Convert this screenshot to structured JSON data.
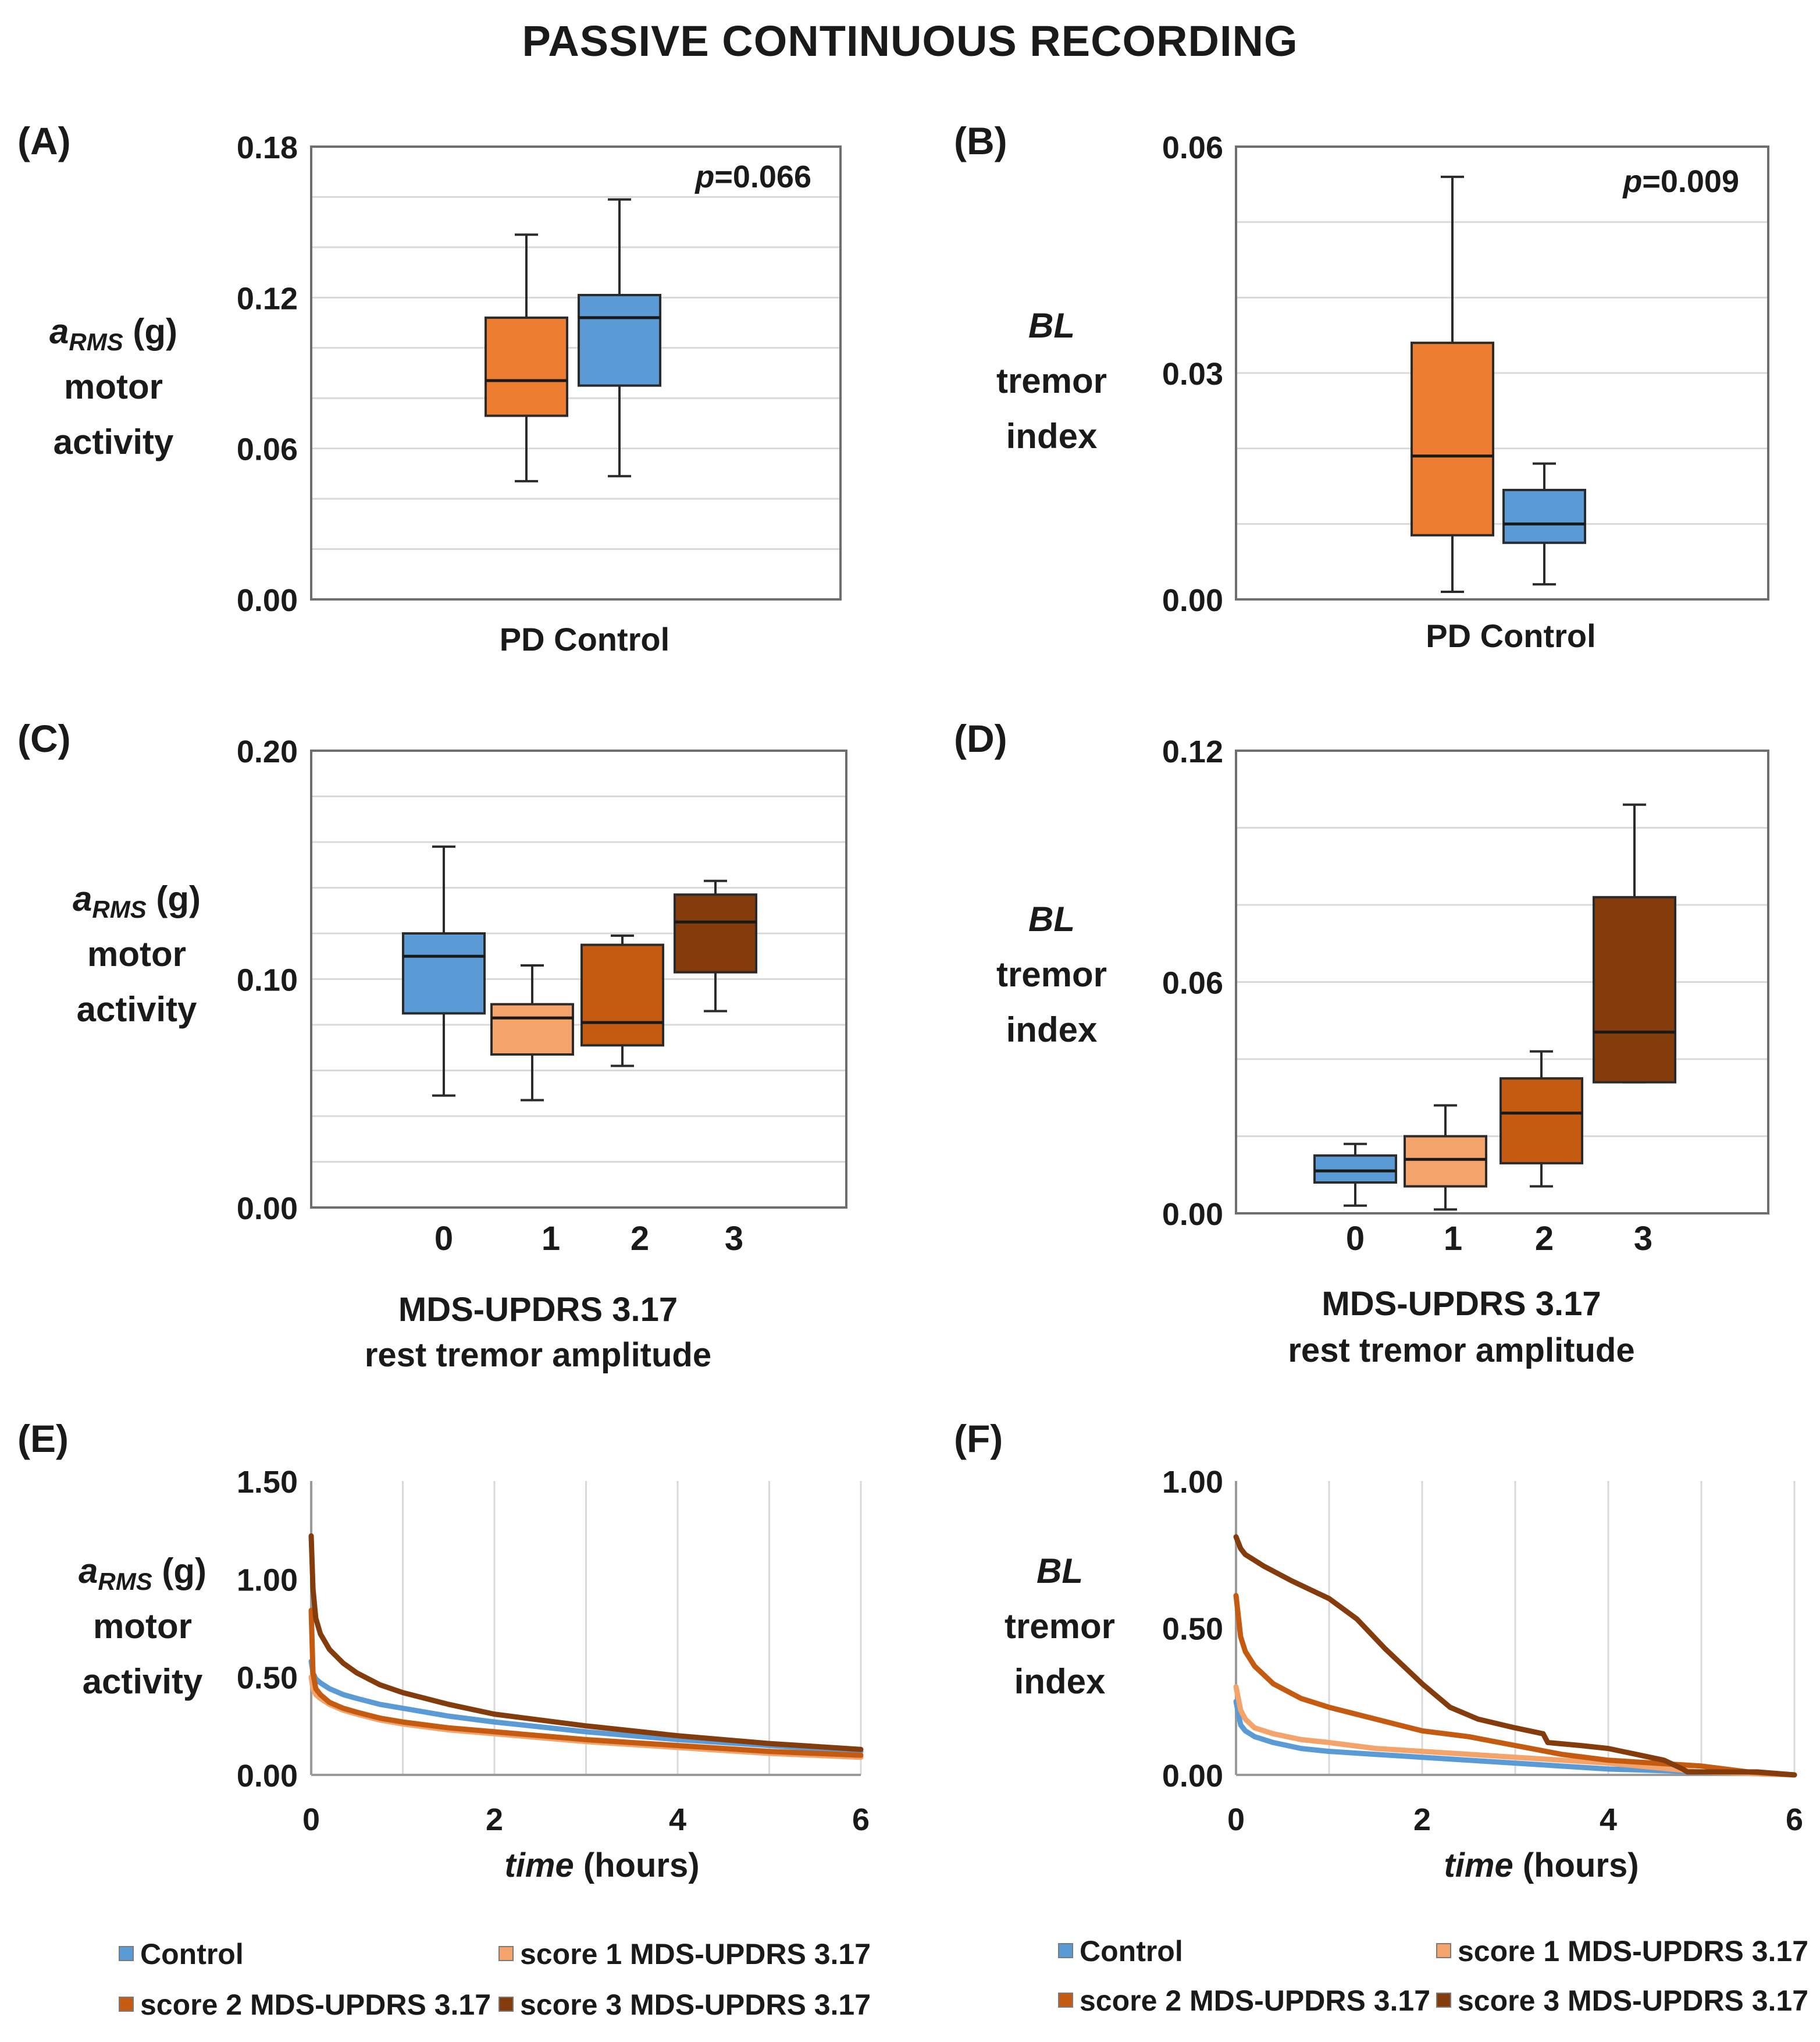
{
  "figure": {
    "title": "PASSIVE CONTINUOUS RECORDING"
  },
  "colors": {
    "control": "#5b9bd5",
    "score1": "#f4a36a",
    "pd": "#ed7d31",
    "score2": "#c55a11",
    "score3": "#843c0c",
    "grid": "#d9d9d9",
    "axis": "#7f7f7f"
  },
  "chart_data": [
    {
      "id": "A",
      "type": "box",
      "panel_label": "(A)",
      "ylabel_lines": [
        "a_RMS (g)",
        "motor",
        "activity"
      ],
      "xlabel_lines": [
        "PD  Control"
      ],
      "annotation": {
        "p": "p",
        "value": "=0.066"
      },
      "ylim": [
        0,
        0.18
      ],
      "yticks": [
        0,
        0.06,
        0.12,
        0.18
      ],
      "ytick_labels": [
        "0.00",
        "0.06",
        "0.12",
        "0.18"
      ],
      "grid_step": 0.02,
      "categories": [
        "PD",
        "Control"
      ],
      "series": [
        {
          "name": "PD",
          "color_key": "pd",
          "whisker_low": 0.047,
          "q1": 0.073,
          "median": 0.087,
          "q3": 0.112,
          "whisker_high": 0.145
        },
        {
          "name": "Control",
          "color_key": "control",
          "whisker_low": 0.049,
          "q1": 0.085,
          "median": 0.112,
          "q3": 0.121,
          "whisker_high": 0.159
        }
      ]
    },
    {
      "id": "B",
      "type": "box",
      "panel_label": "(B)",
      "ylabel_lines": [
        "BL",
        "tremor",
        "index"
      ],
      "xlabel_lines": [
        "PD  Control"
      ],
      "annotation": {
        "p": "p",
        "value": "=0.009"
      },
      "ylim": [
        0,
        0.06
      ],
      "yticks": [
        0,
        0.03,
        0.06
      ],
      "ytick_labels": [
        "0.00",
        "0.03",
        "0.06"
      ],
      "grid_step": 0.01,
      "categories": [
        "PD",
        "Control"
      ],
      "series": [
        {
          "name": "PD",
          "color_key": "pd",
          "whisker_low": 0.001,
          "q1": 0.0085,
          "median": 0.019,
          "q3": 0.034,
          "whisker_high": 0.056
        },
        {
          "name": "Control",
          "color_key": "control",
          "whisker_low": 0.002,
          "q1": 0.0075,
          "median": 0.01,
          "q3": 0.0145,
          "whisker_high": 0.018
        }
      ]
    },
    {
      "id": "C",
      "type": "box",
      "panel_label": "(C)",
      "ylabel_lines": [
        "a_RMS (g)",
        "motor",
        "activity"
      ],
      "xlabel_lines": [
        "MDS-UPDRS 3.17",
        "rest tremor amplitude"
      ],
      "ylim": [
        0,
        0.2
      ],
      "yticks": [
        0,
        0.1,
        0.2
      ],
      "ytick_labels": [
        "0.00",
        "0.10",
        "0.20"
      ],
      "grid_step": 0.02,
      "categories": [
        "0",
        "1",
        "2",
        "3"
      ],
      "series": [
        {
          "name": "0",
          "color_key": "control",
          "whisker_low": 0.049,
          "q1": 0.085,
          "median": 0.11,
          "q3": 0.12,
          "whisker_high": 0.158
        },
        {
          "name": "1",
          "color_key": "score1",
          "whisker_low": 0.047,
          "q1": 0.067,
          "median": 0.083,
          "q3": 0.089,
          "whisker_high": 0.106
        },
        {
          "name": "2",
          "color_key": "score2",
          "whisker_low": 0.062,
          "q1": 0.071,
          "median": 0.081,
          "q3": 0.115,
          "whisker_high": 0.119
        },
        {
          "name": "3",
          "color_key": "score3",
          "whisker_low": 0.086,
          "q1": 0.103,
          "median": 0.125,
          "q3": 0.137,
          "whisker_high": 0.143
        }
      ]
    },
    {
      "id": "D",
      "type": "box",
      "panel_label": "(D)",
      "ylabel_lines": [
        "BL",
        "tremor",
        "index"
      ],
      "xlabel_lines": [
        "MDS-UPDRS 3.17",
        "rest tremor amplitude"
      ],
      "ylim": [
        0,
        0.12
      ],
      "yticks": [
        0,
        0.06,
        0.12
      ],
      "ytick_labels": [
        "0.00",
        "0.06",
        "0.12"
      ],
      "grid_step": 0.02,
      "categories": [
        "0",
        "1",
        "2",
        "3"
      ],
      "series": [
        {
          "name": "0",
          "color_key": "control",
          "whisker_low": 0.002,
          "q1": 0.008,
          "median": 0.011,
          "q3": 0.015,
          "whisker_high": 0.018
        },
        {
          "name": "1",
          "color_key": "score1",
          "whisker_low": 0.001,
          "q1": 0.007,
          "median": 0.014,
          "q3": 0.02,
          "whisker_high": 0.028
        },
        {
          "name": "2",
          "color_key": "score2",
          "whisker_low": 0.007,
          "q1": 0.013,
          "median": 0.026,
          "q3": 0.035,
          "whisker_high": 0.042
        },
        {
          "name": "3",
          "color_key": "score3",
          "whisker_low": 0.034,
          "q1": 0.034,
          "median": 0.047,
          "q3": 0.082,
          "whisker_high": 0.106
        }
      ]
    },
    {
      "id": "E",
      "type": "line",
      "panel_label": "(E)",
      "ylabel_lines": [
        "a_RMS (g)",
        "motor",
        "activity"
      ],
      "xlabel": {
        "italic": "time",
        "rest": " (hours)"
      },
      "xlim": [
        0,
        6
      ],
      "xticks": [
        0,
        2,
        4,
        6
      ],
      "xtick_labels": [
        "0",
        "2",
        "4",
        "6"
      ],
      "x_grid_step": 1,
      "ylim": [
        0,
        1.5
      ],
      "yticks": [
        0,
        0.5,
        1.0,
        1.5
      ],
      "ytick_labels": [
        "0.00",
        "0.50",
        "1.00",
        "1.50"
      ],
      "series": [
        {
          "name": "Control",
          "color_key": "control",
          "x": [
            0,
            0.02,
            0.05,
            0.1,
            0.2,
            0.35,
            0.5,
            0.75,
            1,
            1.5,
            2,
            3,
            4,
            5,
            6
          ],
          "y": [
            0.58,
            0.52,
            0.49,
            0.47,
            0.44,
            0.41,
            0.39,
            0.36,
            0.34,
            0.3,
            0.27,
            0.22,
            0.18,
            0.15,
            0.12
          ]
        },
        {
          "name": "score 1 MDS-UPDRS 3.17",
          "color_key": "score1",
          "x": [
            0,
            0.02,
            0.05,
            0.1,
            0.2,
            0.35,
            0.5,
            0.75,
            1,
            1.5,
            2,
            3,
            4,
            5,
            6
          ],
          "y": [
            0.5,
            0.44,
            0.41,
            0.39,
            0.36,
            0.33,
            0.31,
            0.28,
            0.26,
            0.23,
            0.21,
            0.17,
            0.14,
            0.11,
            0.09
          ]
        },
        {
          "name": "score 2 MDS-UPDRS 3.17",
          "color_key": "score2",
          "x": [
            0,
            0.02,
            0.05,
            0.1,
            0.2,
            0.35,
            0.5,
            0.75,
            1,
            1.5,
            2,
            3,
            4,
            5,
            6
          ],
          "y": [
            0.84,
            0.52,
            0.44,
            0.41,
            0.37,
            0.34,
            0.32,
            0.29,
            0.27,
            0.24,
            0.22,
            0.18,
            0.15,
            0.12,
            0.1
          ]
        },
        {
          "name": "score 3 MDS-UPDRS 3.17",
          "color_key": "score3",
          "x": [
            0,
            0.02,
            0.05,
            0.1,
            0.2,
            0.35,
            0.5,
            0.75,
            1,
            1.5,
            2,
            3,
            4,
            5,
            6
          ],
          "y": [
            1.22,
            0.95,
            0.8,
            0.72,
            0.64,
            0.57,
            0.52,
            0.46,
            0.42,
            0.36,
            0.31,
            0.25,
            0.2,
            0.16,
            0.13
          ]
        }
      ]
    },
    {
      "id": "F",
      "type": "line",
      "panel_label": "(F)",
      "ylabel_lines": [
        "BL",
        "tremor",
        "index"
      ],
      "xlabel": {
        "italic": "time",
        "rest": " (hours)"
      },
      "xlim": [
        0,
        6
      ],
      "xticks": [
        0,
        2,
        4,
        6
      ],
      "xtick_labels": [
        "0",
        "2",
        "4",
        "6"
      ],
      "x_grid_step": 1,
      "ylim": [
        0,
        1.0
      ],
      "yticks": [
        0,
        0.5,
        1.0
      ],
      "ytick_labels": [
        "0.00",
        "0.50",
        "1.00"
      ],
      "series": [
        {
          "name": "Control",
          "color_key": "control",
          "x": [
            0,
            0.05,
            0.1,
            0.2,
            0.4,
            0.7,
            1,
            1.5,
            2,
            3,
            4,
            5,
            6
          ],
          "y": [
            0.25,
            0.17,
            0.15,
            0.13,
            0.11,
            0.09,
            0.08,
            0.07,
            0.06,
            0.04,
            0.02,
            0.01,
            0.0
          ]
        },
        {
          "name": "score 1 MDS-UPDRS 3.17",
          "color_key": "score1",
          "x": [
            0,
            0.05,
            0.1,
            0.2,
            0.4,
            0.7,
            1,
            1.5,
            2,
            3,
            4,
            5,
            6
          ],
          "y": [
            0.3,
            0.22,
            0.19,
            0.16,
            0.14,
            0.12,
            0.11,
            0.09,
            0.08,
            0.06,
            0.04,
            0.01,
            0.0
          ]
        },
        {
          "name": "score 2 MDS-UPDRS 3.17",
          "color_key": "score2",
          "x": [
            0,
            0.05,
            0.1,
            0.2,
            0.4,
            0.7,
            1,
            1.5,
            2,
            2.5,
            3,
            3.5,
            4,
            4.5,
            5,
            5.5,
            6
          ],
          "y": [
            0.61,
            0.47,
            0.42,
            0.37,
            0.31,
            0.26,
            0.23,
            0.19,
            0.15,
            0.13,
            0.1,
            0.07,
            0.05,
            0.04,
            0.03,
            0.01,
            0.0
          ]
        },
        {
          "name": "score 3 MDS-UPDRS 3.17",
          "color_key": "score3",
          "x": [
            0,
            0.05,
            0.1,
            0.3,
            0.6,
            1,
            1.3,
            1.6,
            2,
            2.3,
            2.6,
            3,
            3.3,
            3.35,
            3.7,
            4,
            4.3,
            4.6,
            4.8,
            4.85,
            5.2,
            5.6,
            6
          ],
          "y": [
            0.81,
            0.77,
            0.75,
            0.71,
            0.66,
            0.6,
            0.53,
            0.43,
            0.31,
            0.23,
            0.19,
            0.16,
            0.14,
            0.11,
            0.1,
            0.09,
            0.07,
            0.05,
            0.02,
            0.01,
            0.01,
            0.01,
            0.0
          ]
        }
      ]
    }
  ],
  "legends": [
    {
      "panel": "E",
      "items": [
        {
          "label": "Control",
          "color_key": "control"
        },
        {
          "label": "score 1 MDS-UPDRS 3.17",
          "color_key": "score1"
        },
        {
          "label": "score 2 MDS-UPDRS 3.17",
          "color_key": "score2"
        },
        {
          "label": "score 3 MDS-UPDRS 3.17",
          "color_key": "score3"
        }
      ]
    },
    {
      "panel": "F",
      "items": [
        {
          "label": "Control",
          "color_key": "control"
        },
        {
          "label": "score 1 MDS-UPDRS 3.17",
          "color_key": "score1"
        },
        {
          "label": "score 2 MDS-UPDRS 3.17",
          "color_key": "score2"
        },
        {
          "label": "score 3 MDS-UPDRS 3.17",
          "color_key": "score3"
        }
      ]
    }
  ]
}
